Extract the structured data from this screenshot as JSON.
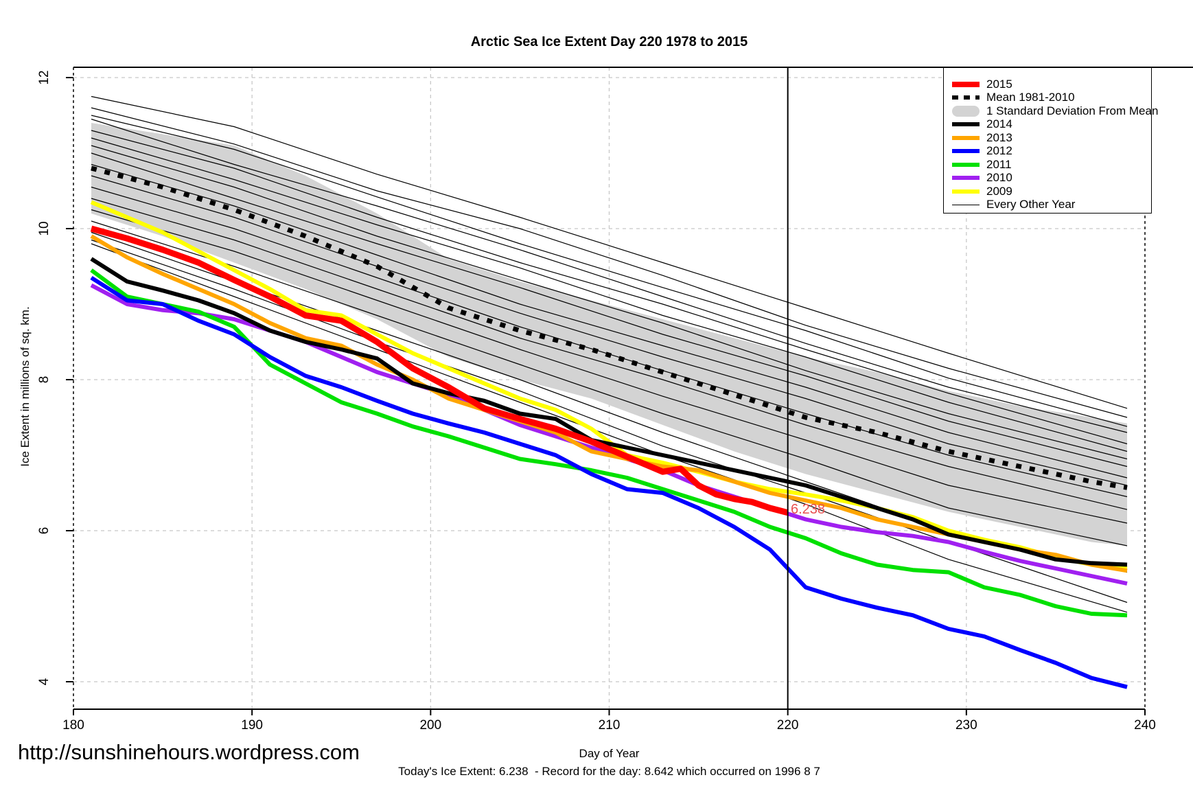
{
  "title": "Arctic Sea Ice Extent Day 220 1978 to 2015",
  "annotation": {
    "text": "6.238",
    "day": 220.2,
    "value": 6.27,
    "color": "#e85050"
  },
  "footer": {
    "url": "http://sunshinehours.wordpress.com",
    "xlabel": "Day of Year",
    "status_line": "Today's Ice Extent: 6.238  - Record for the day: 8.642 which occurred on 1996 8 7"
  },
  "legend": {
    "items": [
      {
        "label": "2015",
        "swatch": "line",
        "color": "#ff0000",
        "thickness": 8
      },
      {
        "label": "Mean 1981-2010",
        "swatch": "dashed-line",
        "color": "#000000",
        "thickness": 6
      },
      {
        "label": "1 Standard Deviation From Mean",
        "swatch": "band",
        "color": "#d3d3d3",
        "thickness": 16
      },
      {
        "label": "2014",
        "swatch": "line",
        "color": "#000000",
        "thickness": 6
      },
      {
        "label": "2013",
        "swatch": "line",
        "color": "#ffa500",
        "thickness": 6
      },
      {
        "label": "2012",
        "swatch": "line",
        "color": "#0000ff",
        "thickness": 6
      },
      {
        "label": "2011",
        "swatch": "line",
        "color": "#00e000",
        "thickness": 6
      },
      {
        "label": "2010",
        "swatch": "line",
        "color": "#a020f0",
        "thickness": 6
      },
      {
        "label": "2009",
        "swatch": "line",
        "color": "#ffff00",
        "thickness": 6
      },
      {
        "label": "Every Other Year",
        "swatch": "thin-line",
        "color": "#000000",
        "thickness": 1.5
      }
    ]
  },
  "chart_data": {
    "type": "line",
    "title": "Arctic Sea Ice Extent Day 220 1978 to 2015",
    "xlabel": "Day of Year",
    "ylabel": "Ice Extent in millions of sq. km.",
    "xlim": [
      180,
      240
    ],
    "ylim": [
      3.6,
      12.15
    ],
    "x_ticks": [
      180,
      190,
      200,
      210,
      220,
      230,
      240
    ],
    "y_ticks": [
      4,
      6,
      8,
      10,
      12
    ],
    "grid": true,
    "legend_position": "top-right",
    "vline_x": 220,
    "grid_color": "#c8c8c8",
    "band": {
      "label": "1 Standard Deviation From Mean",
      "color": "#d3d3d3",
      "days": [
        181,
        185,
        189,
        193,
        197,
        201,
        205,
        209,
        213,
        217,
        221,
        225,
        229,
        233,
        237,
        239
      ],
      "top": [
        11.4,
        11.25,
        11.1,
        10.7,
        10.2,
        9.6,
        9.3,
        9.05,
        8.8,
        8.55,
        8.3,
        8.1,
        7.85,
        7.65,
        7.5,
        7.42
      ],
      "bottom": [
        10.2,
        9.9,
        9.55,
        9.2,
        8.8,
        8.3,
        8.0,
        7.75,
        7.4,
        7.05,
        6.75,
        6.5,
        6.25,
        6.05,
        5.85,
        5.8
      ]
    },
    "mean": {
      "label": "Mean 1981-2010",
      "color": "#000000",
      "days": [
        181,
        185,
        189,
        193,
        197,
        201,
        205,
        209,
        213,
        217,
        221,
        225,
        229,
        233,
        237,
        239
      ],
      "values": [
        10.8,
        10.55,
        10.25,
        9.9,
        9.5,
        8.95,
        8.65,
        8.4,
        8.1,
        7.8,
        7.5,
        7.3,
        7.05,
        6.85,
        6.65,
        6.57
      ]
    },
    "series": [
      {
        "name": "2009",
        "color": "#ffff00",
        "width": 6,
        "days": [
          181,
          183,
          185,
          187,
          189,
          191,
          193,
          195,
          197,
          199,
          201,
          203,
          205,
          207,
          209,
          211,
          213,
          215,
          217,
          219,
          221,
          223,
          225,
          227,
          229,
          231,
          233,
          235,
          237,
          239
        ],
        "values": [
          10.35,
          10.15,
          9.95,
          9.7,
          9.45,
          9.2,
          8.92,
          8.85,
          8.6,
          8.35,
          8.15,
          7.95,
          7.75,
          7.6,
          7.35,
          7.0,
          6.9,
          6.78,
          6.65,
          6.55,
          6.48,
          6.4,
          6.3,
          6.18,
          6.0,
          5.88,
          5.78,
          5.65,
          5.55,
          5.5
        ]
      },
      {
        "name": "2010",
        "color": "#a020f0",
        "width": 6,
        "days": [
          181,
          183,
          185,
          187,
          189,
          191,
          193,
          195,
          197,
          199,
          201,
          203,
          205,
          207,
          209,
          211,
          213,
          215,
          217,
          219,
          221,
          223,
          225,
          227,
          229,
          231,
          233,
          235,
          237,
          239
        ],
        "values": [
          9.25,
          9.0,
          8.92,
          8.88,
          8.8,
          8.65,
          8.5,
          8.3,
          8.1,
          7.95,
          7.8,
          7.6,
          7.4,
          7.25,
          7.1,
          6.95,
          6.8,
          6.6,
          6.45,
          6.3,
          6.15,
          6.05,
          5.98,
          5.93,
          5.85,
          5.72,
          5.6,
          5.5,
          5.4,
          5.3
        ]
      },
      {
        "name": "2011",
        "color": "#00e000",
        "width": 6,
        "days": [
          181,
          183,
          185,
          187,
          189,
          191,
          193,
          195,
          197,
          199,
          201,
          203,
          205,
          207,
          209,
          211,
          213,
          215,
          217,
          219,
          221,
          223,
          225,
          227,
          229,
          231,
          233,
          235,
          237,
          239
        ],
        "values": [
          9.45,
          9.1,
          9.0,
          8.9,
          8.7,
          8.2,
          7.95,
          7.7,
          7.55,
          7.38,
          7.25,
          7.1,
          6.95,
          6.88,
          6.8,
          6.7,
          6.55,
          6.4,
          6.25,
          6.05,
          5.9,
          5.7,
          5.55,
          5.48,
          5.45,
          5.25,
          5.15,
          5.0,
          4.9,
          4.88
        ]
      },
      {
        "name": "2012",
        "color": "#0000ff",
        "width": 6,
        "days": [
          181,
          183,
          185,
          187,
          189,
          191,
          193,
          195,
          197,
          199,
          201,
          203,
          205,
          207,
          209,
          211,
          213,
          215,
          217,
          219,
          221,
          223,
          225,
          227,
          229,
          231,
          233,
          235,
          237,
          239
        ],
        "values": [
          9.35,
          9.05,
          9.0,
          8.78,
          8.6,
          8.3,
          8.05,
          7.9,
          7.72,
          7.55,
          7.42,
          7.3,
          7.15,
          7.0,
          6.75,
          6.55,
          6.5,
          6.3,
          6.05,
          5.75,
          5.25,
          5.1,
          4.98,
          4.88,
          4.7,
          4.6,
          4.42,
          4.25,
          4.05,
          3.93
        ]
      },
      {
        "name": "2013",
        "color": "#ffa500",
        "width": 6,
        "days": [
          181,
          183,
          185,
          187,
          189,
          191,
          193,
          195,
          197,
          199,
          201,
          203,
          205,
          207,
          209,
          211,
          213,
          215,
          217,
          219,
          221,
          223,
          225,
          227,
          229,
          231,
          233,
          235,
          237,
          239
        ],
        "values": [
          9.9,
          9.62,
          9.4,
          9.2,
          9.0,
          8.75,
          8.55,
          8.45,
          8.2,
          8.0,
          7.75,
          7.6,
          7.45,
          7.3,
          7.05,
          6.95,
          6.85,
          6.8,
          6.65,
          6.5,
          6.4,
          6.3,
          6.15,
          6.05,
          5.95,
          5.85,
          5.75,
          5.68,
          5.55,
          5.47
        ]
      },
      {
        "name": "2014",
        "color": "#000000",
        "width": 6,
        "days": [
          181,
          183,
          185,
          187,
          189,
          191,
          193,
          195,
          197,
          199,
          201,
          203,
          205,
          207,
          209,
          211,
          213,
          215,
          217,
          219,
          221,
          223,
          225,
          227,
          229,
          231,
          233,
          235,
          237,
          239
        ],
        "values": [
          9.6,
          9.3,
          9.18,
          9.05,
          8.88,
          8.65,
          8.5,
          8.4,
          8.28,
          7.95,
          7.82,
          7.72,
          7.55,
          7.48,
          7.2,
          7.1,
          7.0,
          6.9,
          6.8,
          6.7,
          6.6,
          6.45,
          6.3,
          6.15,
          5.95,
          5.85,
          5.75,
          5.62,
          5.57,
          5.55
        ]
      },
      {
        "name": "2015",
        "color": "#ff0000",
        "width": 9,
        "days": [
          181,
          183,
          185,
          187,
          189,
          191,
          193,
          195,
          197,
          199,
          201,
          203,
          205,
          207,
          209,
          211,
          213,
          214,
          215,
          216,
          217,
          218,
          219,
          220
        ],
        "values": [
          10.0,
          9.87,
          9.72,
          9.55,
          9.32,
          9.1,
          8.85,
          8.78,
          8.5,
          8.15,
          7.9,
          7.62,
          7.48,
          7.35,
          7.18,
          6.98,
          6.78,
          6.82,
          6.6,
          6.48,
          6.42,
          6.38,
          6.3,
          6.238
        ]
      }
    ],
    "other_years": {
      "label": "Every Other Year",
      "color": "#000000",
      "width": 1.2,
      "days": [
        181,
        189,
        197,
        205,
        213,
        221,
        229,
        239
      ],
      "lines": [
        [
          11.75,
          11.35,
          10.72,
          10.15,
          9.55,
          8.95,
          8.35,
          7.62
        ],
        [
          11.6,
          11.12,
          10.5,
          10.0,
          9.38,
          8.72,
          8.15,
          7.5
        ],
        [
          11.5,
          11.05,
          10.42,
          9.8,
          9.22,
          8.65,
          8.02,
          7.38
        ],
        [
          11.45,
          10.85,
          10.3,
          9.72,
          9.1,
          8.48,
          7.9,
          7.3
        ],
        [
          11.3,
          10.8,
          10.15,
          9.55,
          9.0,
          8.4,
          7.82,
          7.15
        ],
        [
          11.2,
          10.65,
          10.05,
          9.48,
          8.85,
          8.3,
          7.7,
          7.05
        ],
        [
          11.1,
          10.55,
          9.9,
          9.32,
          8.75,
          8.12,
          7.55,
          6.95
        ],
        [
          11.0,
          10.4,
          9.8,
          9.22,
          8.6,
          8.05,
          7.45,
          6.85
        ],
        [
          10.85,
          10.3,
          9.65,
          9.0,
          8.45,
          7.9,
          7.3,
          6.7
        ],
        [
          10.7,
          10.15,
          9.5,
          8.88,
          8.3,
          7.75,
          7.15,
          6.6
        ],
        [
          10.55,
          10.0,
          9.35,
          8.7,
          8.12,
          7.55,
          7.0,
          6.45
        ],
        [
          10.4,
          9.85,
          9.2,
          8.55,
          8.0,
          7.4,
          6.85,
          6.28
        ],
        [
          10.25,
          9.7,
          9.05,
          8.4,
          7.78,
          7.2,
          6.6,
          6.1
        ],
        [
          10.1,
          9.5,
          8.85,
          8.2,
          7.55,
          6.95,
          6.3,
          5.8
        ],
        [
          9.95,
          9.3,
          8.65,
          8.0,
          7.3,
          6.65,
          6.0,
          5.45
        ],
        [
          9.85,
          9.2,
          8.5,
          7.85,
          7.12,
          6.5,
          5.85,
          5.05
        ],
        [
          9.8,
          9.1,
          8.4,
          7.7,
          7.0,
          6.35,
          5.62,
          4.92
        ]
      ]
    }
  }
}
